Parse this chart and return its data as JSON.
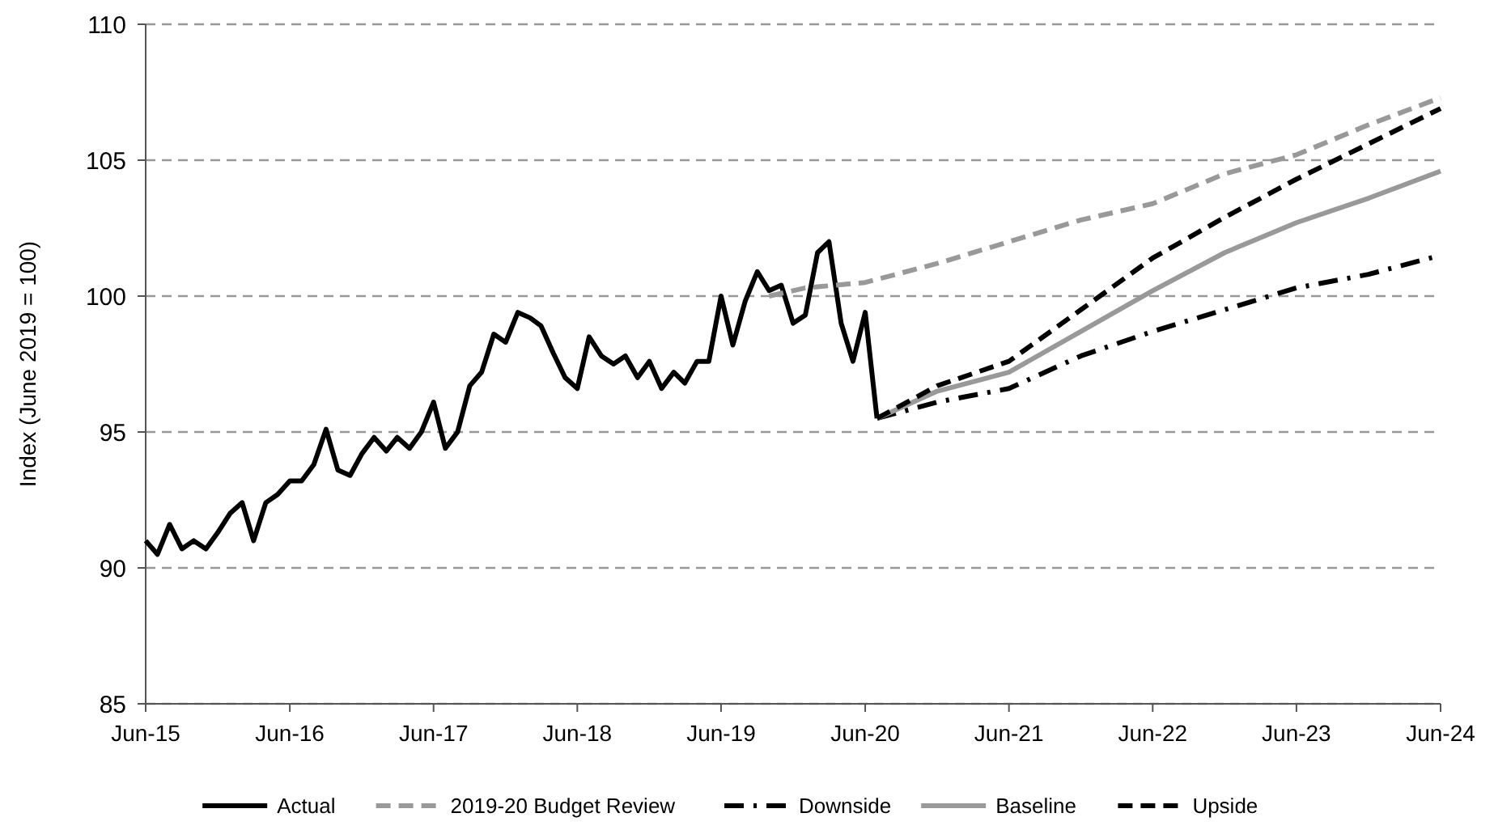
{
  "chart_data": {
    "type": "line",
    "ylabel": "Index (June 2019 = 100)",
    "xlim": [
      "2015-06",
      "2024-06"
    ],
    "ylim": [
      85,
      110
    ],
    "yticks": [
      85,
      90,
      95,
      100,
      105,
      110
    ],
    "xticks": [
      {
        "value": "2015-06",
        "label": "Jun-15"
      },
      {
        "value": "2016-06",
        "label": "Jun-16"
      },
      {
        "value": "2017-06",
        "label": "Jun-17"
      },
      {
        "value": "2018-06",
        "label": "Jun-18"
      },
      {
        "value": "2019-06",
        "label": "Jun-19"
      },
      {
        "value": "2020-06",
        "label": "Jun-20"
      },
      {
        "value": "2021-06",
        "label": "Jun-21"
      },
      {
        "value": "2022-06",
        "label": "Jun-22"
      },
      {
        "value": "2023-06",
        "label": "Jun-23"
      },
      {
        "value": "2024-06",
        "label": "Jun-24"
      }
    ],
    "grid": "y",
    "legend": "bottom",
    "series": [
      {
        "name": "Actual",
        "color": "#000000",
        "line_style": "solid",
        "x": [
          "2015-06",
          "2015-07",
          "2015-08",
          "2015-09",
          "2015-10",
          "2015-11",
          "2015-12",
          "2016-01",
          "2016-02",
          "2016-03",
          "2016-04",
          "2016-05",
          "2016-06",
          "2016-07",
          "2016-08",
          "2016-09",
          "2016-10",
          "2016-11",
          "2016-12",
          "2017-01",
          "2017-02",
          "2017-03",
          "2017-04",
          "2017-05",
          "2017-06",
          "2017-07",
          "2017-08",
          "2017-09",
          "2017-10",
          "2017-11",
          "2017-12",
          "2018-01",
          "2018-02",
          "2018-03",
          "2018-04",
          "2018-05",
          "2018-06",
          "2018-07",
          "2018-08",
          "2018-09",
          "2018-10",
          "2018-11",
          "2018-12",
          "2019-01",
          "2019-02",
          "2019-03",
          "2019-04",
          "2019-05",
          "2019-06",
          "2019-07",
          "2019-08",
          "2019-09",
          "2019-10",
          "2019-11",
          "2019-12",
          "2020-01",
          "2020-02",
          "2020-03",
          "2020-04",
          "2020-05",
          "2020-06",
          "2020-07"
        ],
        "values": [
          91.0,
          90.5,
          91.6,
          90.7,
          91.0,
          90.7,
          91.3,
          92.0,
          92.4,
          91.0,
          92.4,
          92.7,
          93.2,
          93.2,
          93.8,
          95.1,
          93.6,
          93.4,
          94.2,
          94.8,
          94.3,
          94.8,
          94.4,
          95.0,
          96.1,
          94.4,
          95.0,
          96.7,
          97.2,
          98.6,
          98.3,
          99.4,
          99.2,
          98.9,
          97.9,
          97.0,
          96.6,
          98.5,
          97.8,
          97.5,
          97.8,
          97.0,
          97.6,
          96.6,
          97.2,
          96.8,
          97.6,
          97.6,
          100.0,
          98.2,
          99.8,
          100.9,
          100.2,
          100.4,
          99.0,
          99.3,
          101.6,
          102.0,
          99.0,
          97.6,
          99.4,
          95.5
        ]
      },
      {
        "name": "2019-20 Budget Review",
        "color": "#999999",
        "line_style": "dashed",
        "x": [
          "2019-10",
          "2020-01",
          "2020-06",
          "2020-12",
          "2021-06",
          "2021-12",
          "2022-06",
          "2022-12",
          "2023-06",
          "2023-12",
          "2024-06"
        ],
        "values": [
          100.0,
          100.3,
          100.5,
          101.2,
          102.0,
          102.8,
          103.4,
          104.5,
          105.2,
          106.3,
          107.3
        ]
      },
      {
        "name": "Downside",
        "color": "#000000",
        "line_style": "dashdot",
        "x": [
          "2020-07",
          "2020-12",
          "2021-06",
          "2021-12",
          "2022-06",
          "2022-12",
          "2023-06",
          "2023-12",
          "2024-06"
        ],
        "values": [
          95.5,
          96.1,
          96.6,
          97.8,
          98.7,
          99.5,
          100.3,
          100.8,
          101.5
        ]
      },
      {
        "name": "Baseline",
        "color": "#999999",
        "line_style": "solid",
        "x": [
          "2020-07",
          "2020-12",
          "2021-06",
          "2021-12",
          "2022-06",
          "2022-12",
          "2023-06",
          "2023-12",
          "2024-06"
        ],
        "values": [
          95.5,
          96.5,
          97.2,
          98.7,
          100.2,
          101.6,
          102.7,
          103.6,
          104.6
        ]
      },
      {
        "name": "Upside",
        "color": "#000000",
        "line_style": "dashed",
        "x": [
          "2020-07",
          "2020-12",
          "2021-06",
          "2021-12",
          "2022-06",
          "2022-12",
          "2023-06",
          "2023-12",
          "2024-06"
        ],
        "values": [
          95.5,
          96.7,
          97.6,
          99.5,
          101.4,
          102.9,
          104.3,
          105.6,
          106.9
        ]
      }
    ]
  }
}
